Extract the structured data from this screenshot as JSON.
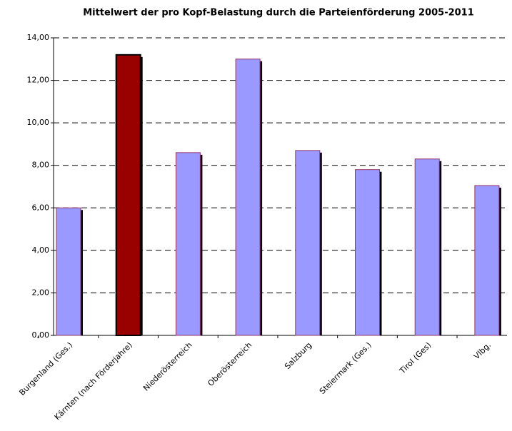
{
  "chart_data": {
    "type": "bar",
    "title": "Mittelwert der pro Kopf-Belastung durch die Parteienförderung 2005-2011",
    "categories": [
      "Burgenland (Ges.)",
      "Kärnten (nach Förderjahre)",
      "Niederösterreich",
      "Oberösterreich",
      "Salzburg",
      "Steiermark (Ges.)",
      "Tirol (Ges)",
      "Vlbg."
    ],
    "values": [
      6.0,
      13.2,
      8.6,
      13.0,
      8.7,
      7.8,
      8.3,
      7.05
    ],
    "colors": [
      "#9999ff",
      "#990000",
      "#9999ff",
      "#9999ff",
      "#9999ff",
      "#9999ff",
      "#9999ff",
      "#9999ff"
    ],
    "ylim": [
      0,
      14
    ],
    "yticks": [
      {
        "value": 0,
        "label": "0,00"
      },
      {
        "value": 2,
        "label": "2,00"
      },
      {
        "value": 4,
        "label": "4,00"
      },
      {
        "value": 6,
        "label": "6,00"
      },
      {
        "value": 8,
        "label": "8,00"
      },
      {
        "value": 10,
        "label": "10,00"
      },
      {
        "value": 12,
        "label": "12,00"
      },
      {
        "value": 14,
        "label": "14,00"
      }
    ],
    "grid": true
  }
}
